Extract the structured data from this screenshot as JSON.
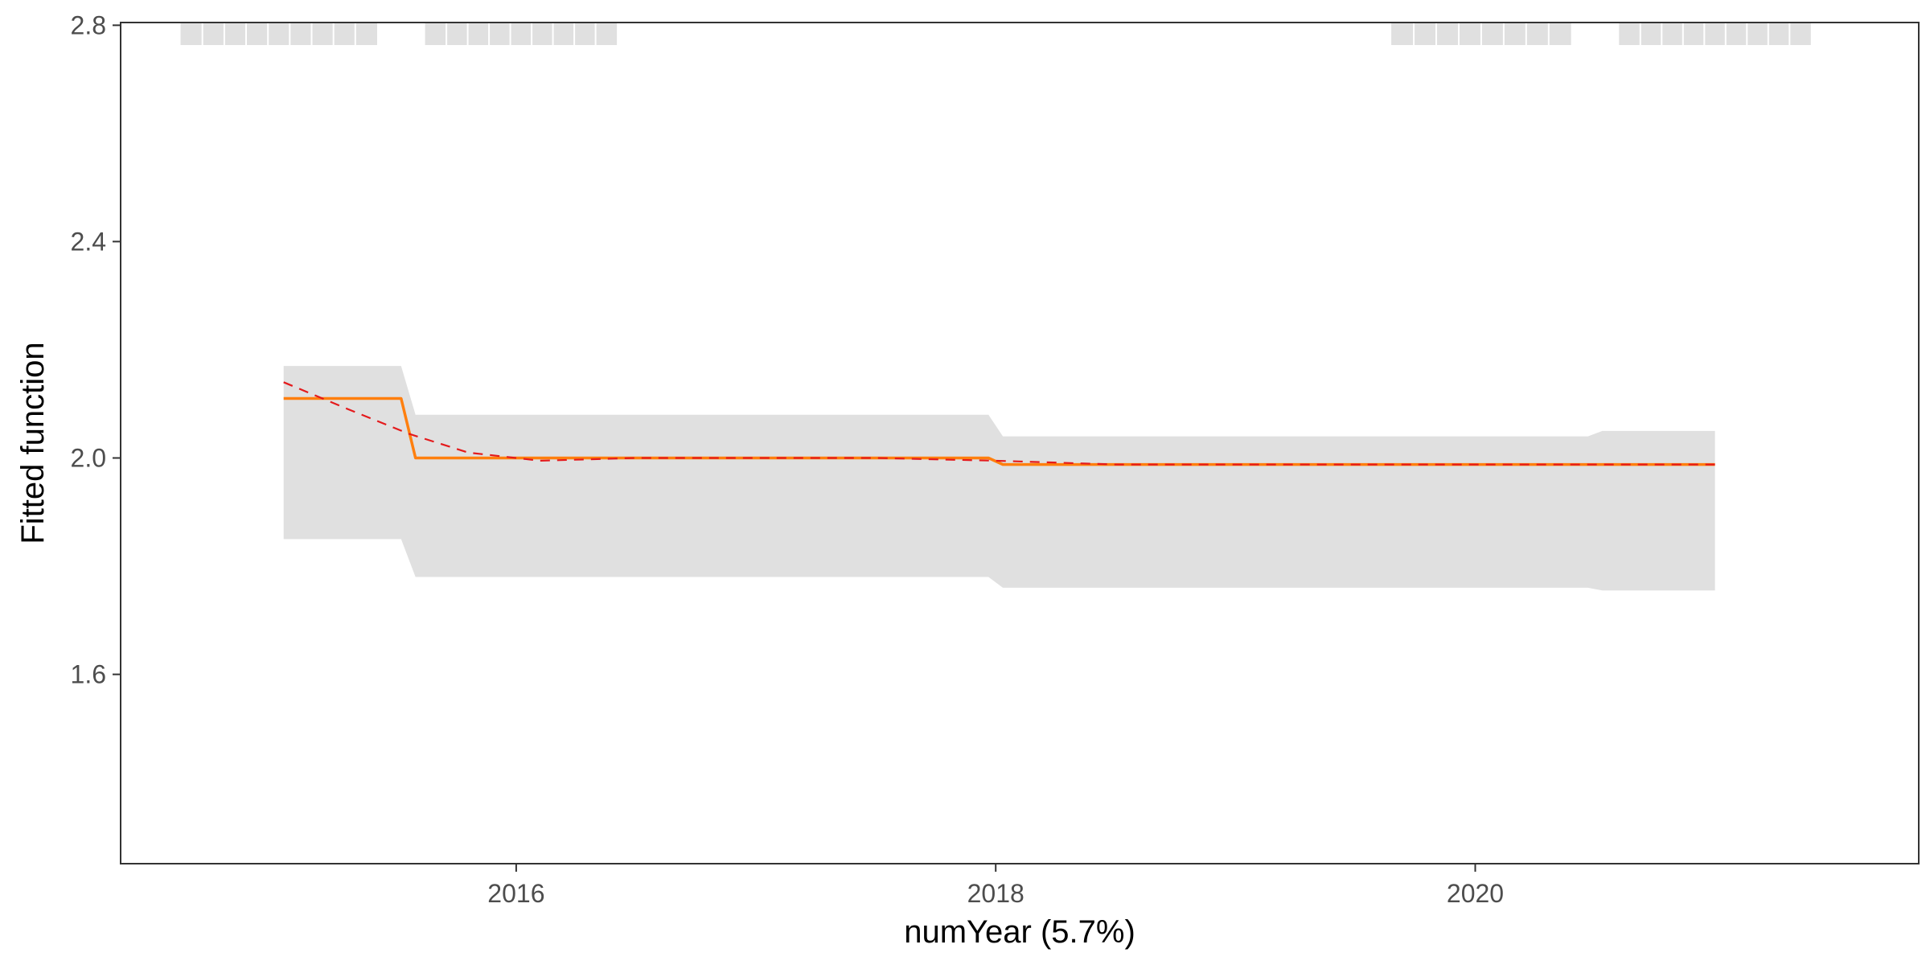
{
  "chart_data": {
    "type": "line",
    "title": "",
    "xlabel": "numYear  (5.7%)",
    "ylabel": "Fitted function",
    "xlim": [
      2014.35,
      2021.85
    ],
    "ylim": [
      1.25,
      2.805
    ],
    "x_ticks": [
      2016,
      2018,
      2020
    ],
    "x_tick_labels": [
      "2016",
      "2018",
      "2020"
    ],
    "y_ticks": [
      1.6,
      2.0,
      2.4,
      2.8
    ],
    "y_tick_labels": [
      "1.6",
      "2.0",
      "2.4",
      "2.8"
    ],
    "grid": false,
    "legend": "none",
    "colors": {
      "fitted": "#ff7f0e",
      "smooth": "#e41a1c",
      "band": "#e0e0e0",
      "rug": "#e0e0e0",
      "axis": "#333333"
    },
    "band": {
      "x": [
        2015.03,
        2015.52,
        2015.58,
        2017.97,
        2018.03,
        2020.47,
        2020.53,
        2021.0
      ],
      "upper": [
        2.17,
        2.17,
        2.08,
        2.08,
        2.04,
        2.04,
        2.05,
        2.05
      ],
      "lower": [
        1.85,
        1.85,
        1.78,
        1.78,
        1.76,
        1.76,
        1.755,
        1.755
      ]
    },
    "series": [
      {
        "role": "fitted",
        "style": "solid",
        "x": [
          2015.03,
          2015.52,
          2015.58,
          2017.97,
          2018.03,
          2021.0
        ],
        "y": [
          2.11,
          2.11,
          2.0,
          2.0,
          1.988,
          1.988
        ]
      },
      {
        "role": "smooth",
        "style": "dashed",
        "x": [
          2015.03,
          2015.3,
          2015.55,
          2015.8,
          2016.1,
          2016.5,
          2017.5,
          2018.0,
          2018.5,
          2019.5,
          2021.0
        ],
        "y": [
          2.14,
          2.09,
          2.045,
          2.01,
          1.995,
          2.0,
          2.0,
          1.995,
          1.988,
          1.988,
          1.988
        ]
      }
    ],
    "rug_segments": [
      [
        2014.6,
        2015.42
      ],
      [
        2015.62,
        2016.42
      ],
      [
        2019.65,
        2020.4
      ],
      [
        2020.6,
        2021.4
      ]
    ]
  }
}
